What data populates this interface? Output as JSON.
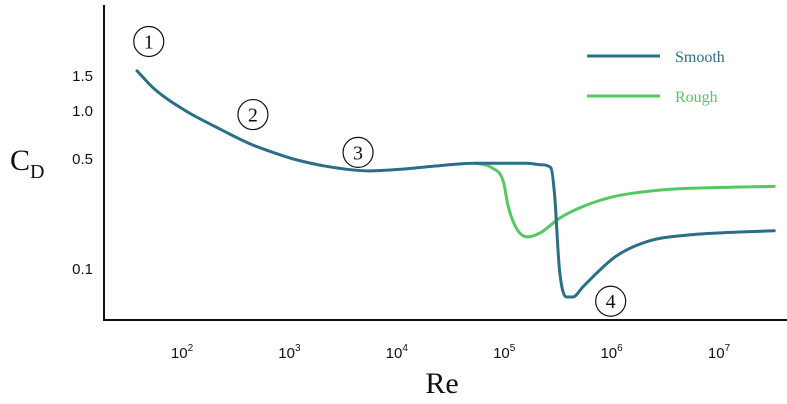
{
  "chart_data": {
    "type": "line",
    "title": "",
    "xlabel": "Re",
    "ylabel": "C",
    "ylabel_sub": "D",
    "x_scale": "log",
    "xlim": [
      30,
      30000000
    ],
    "x_ticks": [
      {
        "value": 100,
        "base": "10",
        "exp": "2"
      },
      {
        "value": 1000,
        "base": "10",
        "exp": "3"
      },
      {
        "value": 10000,
        "base": "10",
        "exp": "4"
      },
      {
        "value": 100000,
        "base": "10",
        "exp": "5"
      },
      {
        "value": 1000000,
        "base": "10",
        "exp": "6"
      },
      {
        "value": 10000000,
        "base": "10",
        "exp": "7"
      }
    ],
    "y_ticks": [
      {
        "label": "1.5",
        "value": 1.5
      },
      {
        "label": "1.0",
        "value": 1.0
      },
      {
        "label": "0.5",
        "value": 0.5
      },
      {
        "label": "0.1",
        "value": 0.1
      }
    ],
    "grid": false,
    "legend_position": "top-right",
    "series": [
      {
        "name": "Smooth",
        "color": "#2a6f86",
        "points": [
          [
            35,
            1.6
          ],
          [
            50,
            1.3
          ],
          [
            100,
            1.0
          ],
          [
            200,
            0.78
          ],
          [
            400,
            0.62
          ],
          [
            700,
            0.54
          ],
          [
            1000,
            0.5
          ],
          [
            2000,
            0.45
          ],
          [
            5000,
            0.42
          ],
          [
            10000,
            0.43
          ],
          [
            20000,
            0.45
          ],
          [
            50000,
            0.47
          ],
          [
            100000,
            0.47
          ],
          [
            150000,
            0.47
          ],
          [
            200000,
            0.46
          ],
          [
            250000,
            0.44
          ],
          [
            270000,
            0.3
          ],
          [
            300000,
            0.1
          ],
          [
            350000,
            0.05
          ],
          [
            400000,
            0.05
          ],
          [
            500000,
            0.065
          ],
          [
            1000000,
            0.12
          ],
          [
            2000000,
            0.15
          ],
          [
            5000000,
            0.165
          ],
          [
            10000000,
            0.17
          ],
          [
            30000000,
            0.175
          ]
        ]
      },
      {
        "name": "Rough",
        "color": "#55c863",
        "points": [
          [
            50000,
            0.47
          ],
          [
            70000,
            0.44
          ],
          [
            90000,
            0.36
          ],
          [
            100000,
            0.25
          ],
          [
            120000,
            0.18
          ],
          [
            150000,
            0.16
          ],
          [
            200000,
            0.17
          ],
          [
            300000,
            0.21
          ],
          [
            500000,
            0.25
          ],
          [
            1000000,
            0.29
          ],
          [
            3000000,
            0.32
          ],
          [
            10000000,
            0.33
          ],
          [
            30000000,
            0.335
          ]
        ]
      }
    ],
    "annotations": [
      {
        "label": "1",
        "x": 45,
        "y": 2.3
      },
      {
        "label": "2",
        "x": 420,
        "y": 0.95
      },
      {
        "label": "3",
        "x": 4000,
        "y": 0.55
      },
      {
        "label": "4",
        "x": 900000,
        "y": 0.045
      }
    ]
  }
}
